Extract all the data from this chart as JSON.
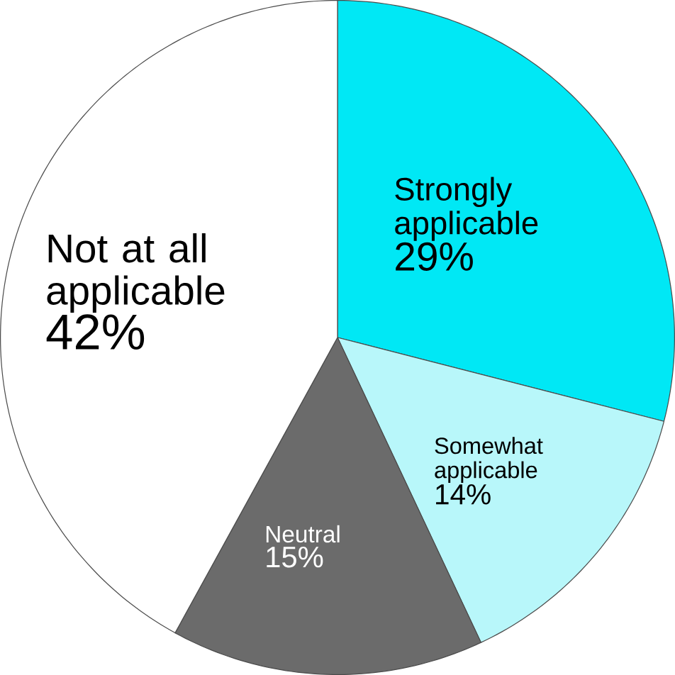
{
  "chart_data": {
    "type": "pie",
    "categories": [
      "Strongly applicable",
      "Somewhat applicable",
      "Neutral",
      "Not at all applicable"
    ],
    "values": [
      29,
      14,
      15,
      42
    ],
    "value_labels": [
      "29%",
      "14%",
      "15%",
      "42%"
    ],
    "colors": [
      "#00e8f5",
      "#b8f7fa",
      "#6b6b6b",
      "#ffffff"
    ]
  }
}
